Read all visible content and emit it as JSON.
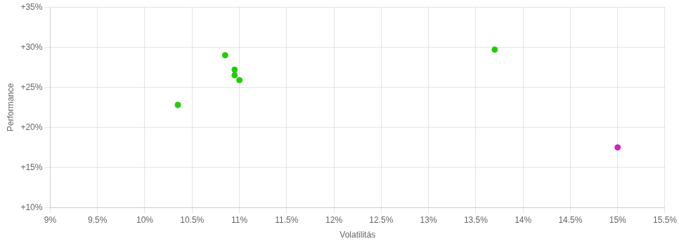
{
  "chart_data": {
    "type": "scatter",
    "xlabel": "Volatilitás",
    "ylabel": "Performance",
    "series": [
      {
        "color": "#22cc00",
        "x": [
          0.1085,
          0.1095,
          0.1095,
          0.11,
          0.1035,
          0.137
        ],
        "values": [
          0.29,
          0.272,
          0.265,
          0.259,
          0.228,
          0.297
        ]
      },
      {
        "color": "#cc22cc",
        "x": [
          0.15
        ],
        "values": [
          0.175
        ]
      }
    ],
    "xlim": [
      0.09,
      0.155
    ],
    "ylim": [
      0.1,
      0.35
    ],
    "xticks": [
      {
        "value": 0.09,
        "label": "9%"
      },
      {
        "value": 0.095,
        "label": "9.5%"
      },
      {
        "value": 0.1,
        "label": "10%"
      },
      {
        "value": 0.105,
        "label": "10.5%"
      },
      {
        "value": 0.11,
        "label": "11%"
      },
      {
        "value": 0.115,
        "label": "11.5%"
      },
      {
        "value": 0.12,
        "label": "12%"
      },
      {
        "value": 0.125,
        "label": "12.5%"
      },
      {
        "value": 0.13,
        "label": "13%"
      },
      {
        "value": 0.135,
        "label": "13.5%"
      },
      {
        "value": 0.14,
        "label": "14%"
      },
      {
        "value": 0.145,
        "label": "14.5%"
      },
      {
        "value": 0.15,
        "label": "15%"
      },
      {
        "value": 0.155,
        "label": "15.5%"
      }
    ],
    "yticks": [
      {
        "value": 0.1,
        "label": "+10%"
      },
      {
        "value": 0.15,
        "label": "+15%"
      },
      {
        "value": 0.2,
        "label": "+20%"
      },
      {
        "value": 0.25,
        "label": "+25%"
      },
      {
        "value": 0.3,
        "label": "+30%"
      },
      {
        "value": 0.35,
        "label": "+35%"
      }
    ],
    "grid": true
  }
}
